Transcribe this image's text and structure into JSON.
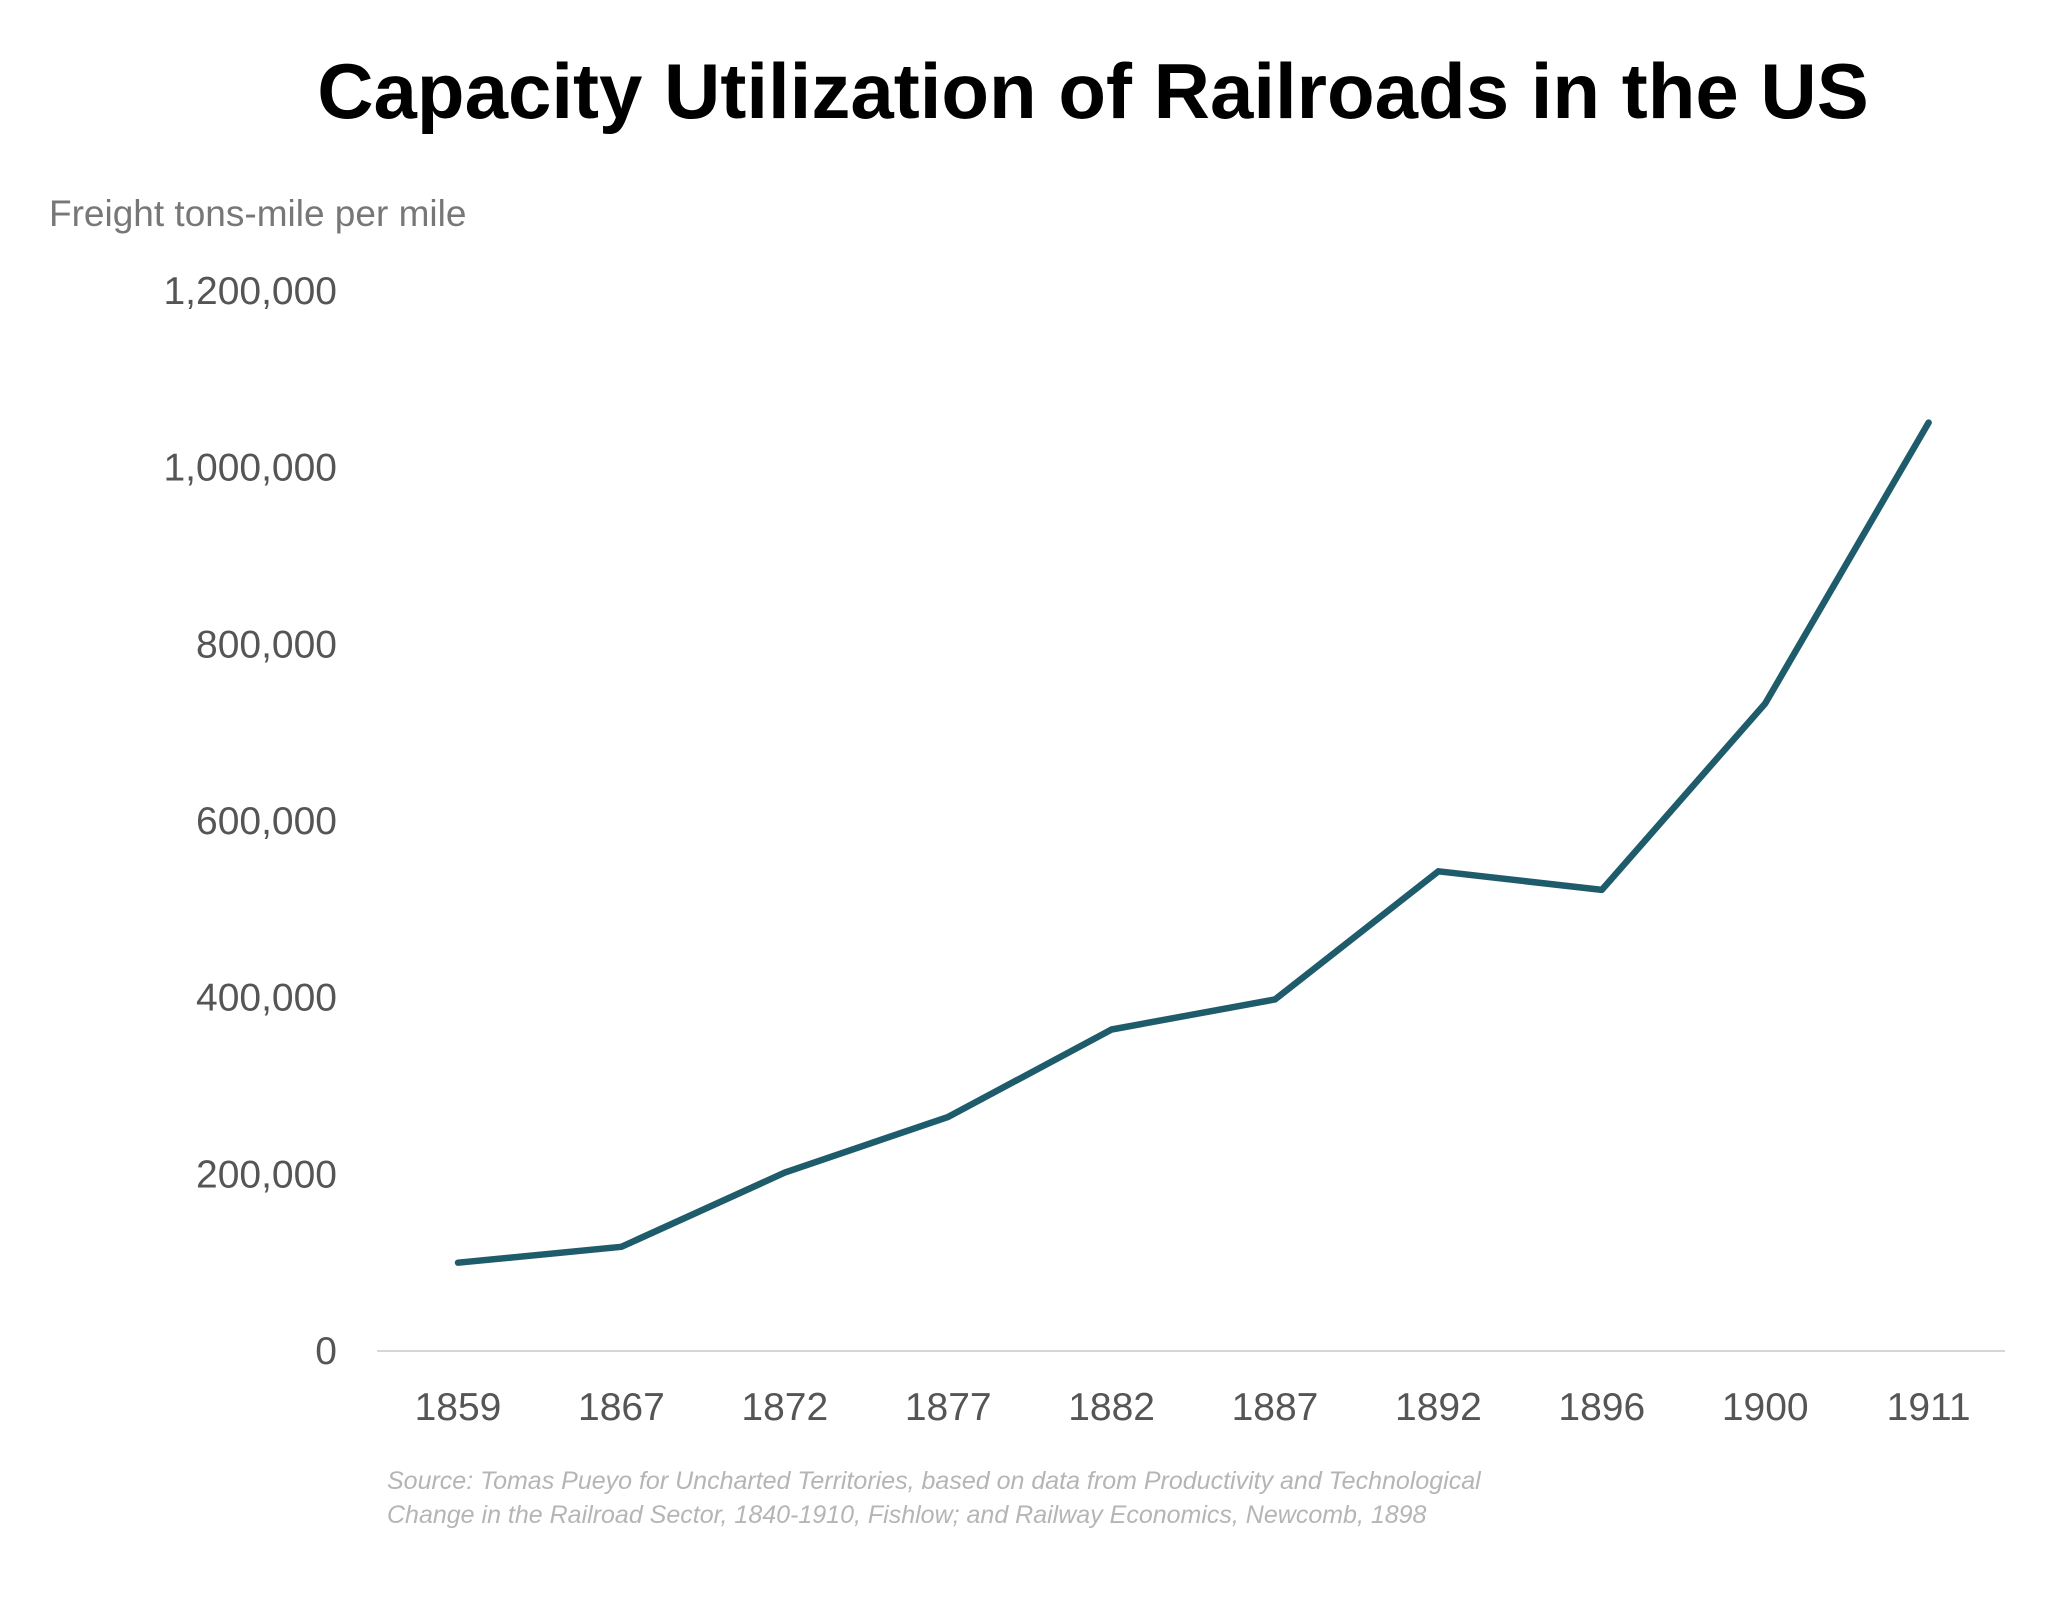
{
  "chart_data": {
    "type": "line",
    "title": "Capacity Utilization of Railroads in the US",
    "ylabel": "Freight tons-mile per mile",
    "xlabel": "",
    "categories": [
      "1859",
      "1867",
      "1872",
      "1877",
      "1882",
      "1887",
      "1892",
      "1896",
      "1900",
      "1911"
    ],
    "series": [
      {
        "name": "Freight tons-mile per mile",
        "color": "#1e5c6b",
        "values": [
          100000,
          118000,
          202000,
          265000,
          364000,
          398000,
          543000,
          522000,
          733000,
          1051000
        ]
      }
    ],
    "yticks": [
      0,
      200000,
      400000,
      600000,
      800000,
      1000000,
      1200000
    ],
    "ytick_labels": [
      "0",
      "200,000",
      "400,000",
      "600,000",
      "800,000",
      "1,000,000",
      "1,200,000"
    ],
    "ylim": [
      0,
      1200000
    ],
    "grid": false,
    "source_lines": [
      "Source: Tomas Pueyo for Uncharted Territories, based on data from Productivity and Technological",
      "Change in the Railroad Sector, 1840-1910, Fishlow; and Railway Economics, Newcomb, 1898"
    ]
  }
}
